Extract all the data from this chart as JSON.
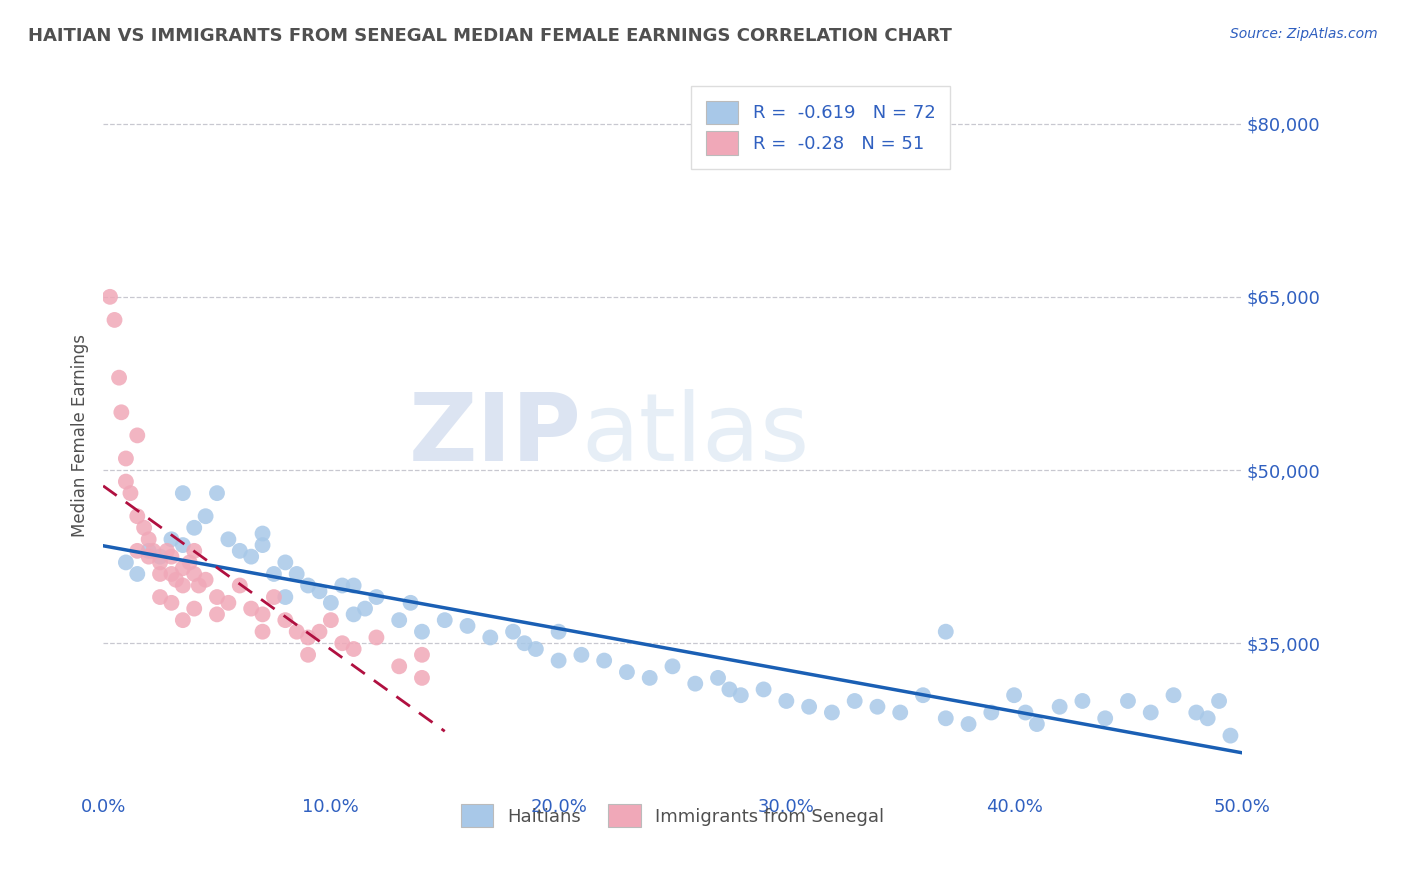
{
  "title": "HAITIAN VS IMMIGRANTS FROM SENEGAL MEDIAN FEMALE EARNINGS CORRELATION CHART",
  "source": "Source: ZipAtlas.com",
  "ylabel": "Median Female Earnings",
  "xlim": [
    0.0,
    50.0
  ],
  "ylim": [
    22000,
    84000
  ],
  "yticks": [
    35000,
    50000,
    65000,
    80000
  ],
  "ytick_labels": [
    "$35,000",
    "$50,000",
    "$65,000",
    "$80,000"
  ],
  "xticks": [
    0,
    10,
    20,
    30,
    40,
    50
  ],
  "xtick_labels": [
    "0.0%",
    "10.0%",
    "20.0%",
    "30.0%",
    "40.0%",
    "50.0%"
  ],
  "legend_labels": [
    "Haitians",
    "Immigrants from Senegal"
  ],
  "legend_R": [
    -0.619,
    -0.28
  ],
  "legend_N": [
    72,
    51
  ],
  "blue_color": "#a8c8e8",
  "pink_color": "#f0a8b8",
  "blue_line_color": "#1a5fb4",
  "pink_line_color": "#b01040",
  "pink_line_dash": [
    6,
    4
  ],
  "watermark_zip": "ZIP",
  "watermark_atlas": "atlas",
  "background_color": "#ffffff",
  "grid_color": "#c8c8d0",
  "title_color": "#505050",
  "axis_label_color": "#505050",
  "tick_label_color": "#3060c0",
  "blue_scatter_x": [
    1.0,
    1.5,
    2.0,
    2.5,
    3.0,
    3.5,
    4.0,
    4.5,
    5.0,
    5.5,
    6.0,
    6.5,
    7.0,
    7.5,
    8.0,
    8.0,
    8.5,
    9.0,
    9.5,
    10.0,
    10.5,
    11.0,
    11.5,
    12.0,
    13.0,
    13.5,
    14.0,
    15.0,
    16.0,
    17.0,
    18.0,
    18.5,
    19.0,
    20.0,
    21.0,
    22.0,
    23.0,
    24.0,
    25.0,
    26.0,
    27.0,
    27.5,
    28.0,
    29.0,
    30.0,
    31.0,
    32.0,
    33.0,
    34.0,
    35.0,
    36.0,
    37.0,
    38.0,
    39.0,
    40.0,
    40.5,
    41.0,
    42.0,
    43.0,
    44.0,
    45.0,
    46.0,
    47.0,
    48.0,
    48.5,
    49.0,
    49.5,
    3.5,
    7.0,
    11.0,
    20.0,
    37.0
  ],
  "blue_scatter_y": [
    42000,
    41000,
    43000,
    42500,
    44000,
    43500,
    45000,
    46000,
    48000,
    44000,
    43000,
    42500,
    44500,
    41000,
    42000,
    39000,
    41000,
    40000,
    39500,
    38500,
    40000,
    37500,
    38000,
    39000,
    37000,
    38500,
    36000,
    37000,
    36500,
    35500,
    36000,
    35000,
    34500,
    33500,
    34000,
    33500,
    32500,
    32000,
    33000,
    31500,
    32000,
    31000,
    30500,
    31000,
    30000,
    29500,
    29000,
    30000,
    29500,
    29000,
    30500,
    28500,
    28000,
    29000,
    30500,
    29000,
    28000,
    29500,
    30000,
    28500,
    30000,
    29000,
    30500,
    29000,
    28500,
    30000,
    27000,
    48000,
    43500,
    40000,
    36000,
    36000
  ],
  "pink_scatter_x": [
    0.3,
    0.5,
    0.7,
    0.8,
    1.0,
    1.0,
    1.2,
    1.5,
    1.5,
    1.8,
    2.0,
    2.0,
    2.2,
    2.5,
    2.5,
    2.8,
    3.0,
    3.0,
    3.2,
    3.5,
    3.5,
    3.8,
    4.0,
    4.0,
    4.2,
    4.5,
    5.0,
    5.5,
    6.0,
    6.5,
    7.0,
    7.5,
    8.0,
    8.5,
    9.0,
    9.5,
    10.0,
    10.5,
    11.0,
    12.0,
    13.0,
    14.0,
    1.5,
    2.5,
    3.0,
    3.5,
    4.0,
    5.0,
    7.0,
    9.0,
    14.0
  ],
  "pink_scatter_y": [
    65000,
    63000,
    58000,
    55000,
    51000,
    49000,
    48000,
    53000,
    43000,
    45000,
    42500,
    44000,
    43000,
    42000,
    41000,
    43000,
    41000,
    42500,
    40500,
    41500,
    40000,
    42000,
    41000,
    43000,
    40000,
    40500,
    39000,
    38500,
    40000,
    38000,
    37500,
    39000,
    37000,
    36000,
    35500,
    36000,
    37000,
    35000,
    34500,
    35500,
    33000,
    34000,
    46000,
    39000,
    38500,
    37000,
    38000,
    37500,
    36000,
    34000,
    32000
  ]
}
